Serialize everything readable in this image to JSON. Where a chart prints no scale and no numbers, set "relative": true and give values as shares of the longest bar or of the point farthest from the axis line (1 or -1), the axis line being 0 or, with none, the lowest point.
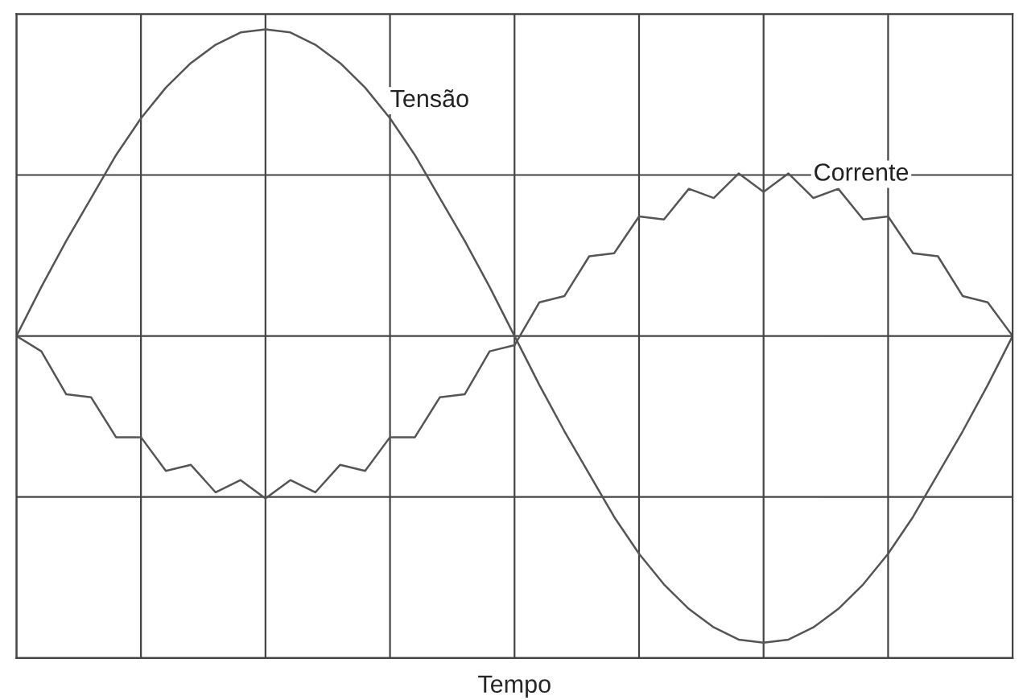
{
  "chart_data": {
    "type": "line",
    "relative": true,
    "xlabel": "Tempo",
    "grid": true,
    "legend": false,
    "categories": [
      null,
      null,
      null,
      null,
      null,
      null,
      null,
      null,
      null,
      null,
      null,
      null,
      null,
      null,
      null,
      null,
      null,
      null,
      null,
      null,
      null,
      null,
      null,
      null,
      null,
      null,
      null,
      null,
      null,
      null,
      null,
      null,
      null,
      null,
      null,
      null,
      null,
      null,
      null,
      null,
      null
    ],
    "series": [
      {
        "name": "Tensão",
        "color": "#555555",
        "values": [
          0,
          0.16,
          0.31,
          0.45,
          0.59,
          0.71,
          0.81,
          0.89,
          0.95,
          0.99,
          1,
          0.99,
          0.95,
          0.89,
          0.81,
          0.71,
          0.59,
          0.45,
          0.31,
          0.16,
          0,
          -0.16,
          -0.31,
          -0.45,
          -0.59,
          -0.71,
          -0.81,
          -0.89,
          -0.95,
          -0.99,
          -1,
          -0.99,
          -0.95,
          -0.89,
          -0.81,
          -0.71,
          -0.59,
          -0.45,
          -0.31,
          -0.16,
          0
        ]
      },
      {
        "name": "Corrente",
        "color": "#555555",
        "values": [
          0,
          -0.05,
          -0.19,
          -0.2,
          -0.33,
          -0.33,
          -0.44,
          -0.42,
          -0.51,
          -0.47,
          -0.53,
          -0.47,
          -0.51,
          -0.42,
          -0.44,
          -0.33,
          -0.33,
          -0.2,
          -0.19,
          -0.05,
          -0.03,
          0.11,
          0.13,
          0.26,
          0.27,
          0.39,
          0.38,
          0.48,
          0.45,
          0.53,
          0.47,
          0.53,
          0.45,
          0.48,
          0.38,
          0.39,
          0.27,
          0.26,
          0.13,
          0.11,
          0
        ]
      }
    ]
  }
}
